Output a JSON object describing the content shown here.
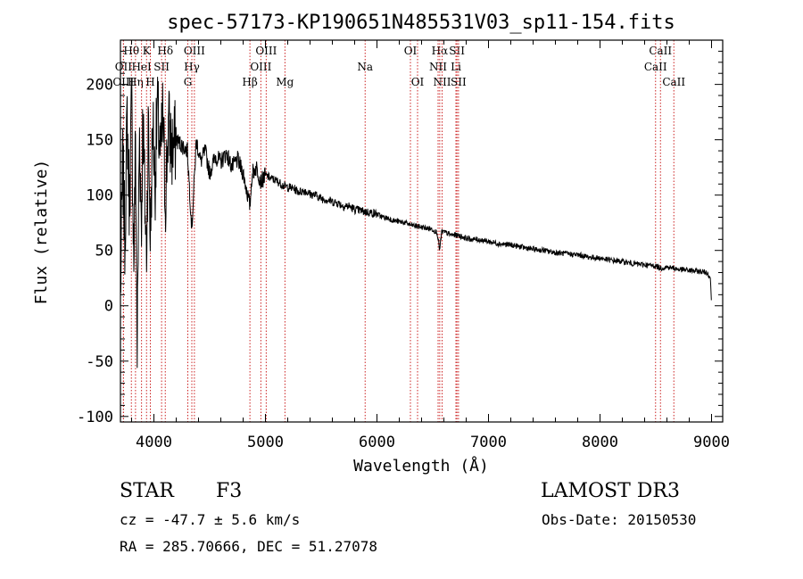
{
  "chart_data": {
    "type": "line",
    "title": "spec-57173-KP190651N485531V03_sp11-154.fits",
    "xlabel": "Wavelength (Å)",
    "ylabel": "Flux (relative)",
    "xlim": [
      3700,
      9100
    ],
    "ylim": [
      -105,
      240
    ],
    "x_ticks": [
      4000,
      5000,
      6000,
      7000,
      8000,
      9000
    ],
    "y_ticks": [
      -100,
      -50,
      0,
      50,
      100,
      150,
      200
    ],
    "series": [
      {
        "name": "spectrum",
        "x": [
          3700,
          3720,
          3740,
          3760,
          3780,
          3800,
          3820,
          3835,
          3850,
          3870,
          3889,
          3900,
          3920,
          3933,
          3950,
          3968,
          3990,
          4010,
          4030,
          4060,
          4080,
          4102,
          4130,
          4160,
          4200,
          4250,
          4300,
          4340,
          4380,
          4420,
          4460,
          4500,
          4550,
          4600,
          4650,
          4700,
          4750,
          4800,
          4861,
          4880,
          4920,
          4960,
          5000,
          5050,
          5100,
          5170,
          5250,
          5300,
          5350,
          5400,
          5450,
          5500,
          5550,
          5600,
          5650,
          5700,
          5750,
          5800,
          5850,
          5893,
          5950,
          6000,
          6050,
          6100,
          6150,
          6200,
          6250,
          6300,
          6350,
          6400,
          6450,
          6500,
          6540,
          6563,
          6580,
          6620,
          6660,
          6700,
          6750,
          6800,
          6850,
          6900,
          7000,
          7100,
          7200,
          7300,
          7400,
          7500,
          7600,
          7700,
          7800,
          7900,
          8000,
          8100,
          8200,
          8300,
          8400,
          8500,
          8542,
          8600,
          8662,
          8700,
          8800,
          8900,
          8960,
          8990,
          9000
        ],
        "y": [
          10,
          130,
          60,
          170,
          90,
          185,
          40,
          150,
          -40,
          160,
          70,
          175,
          90,
          45,
          165,
          60,
          170,
          110,
          180,
          130,
          175,
          95,
          165,
          140,
          150,
          145,
          140,
          70,
          150,
          130,
          140,
          120,
          135,
          130,
          138,
          125,
          132,
          120,
          90,
          120,
          125,
          112,
          118,
          115,
          113,
          108,
          106,
          103,
          104,
          101,
          100,
          97,
          96,
          94,
          93,
          90,
          90,
          87,
          86,
          85,
          84,
          83,
          80,
          79,
          77,
          76,
          75,
          73,
          72,
          71,
          70,
          69,
          66,
          50,
          67,
          66,
          64,
          64,
          63,
          61,
          60,
          60,
          58,
          56,
          55,
          53,
          51,
          50,
          48,
          47,
          46,
          44,
          43,
          41,
          40,
          38,
          37,
          36,
          34,
          35,
          34,
          33,
          32,
          31,
          30,
          25,
          0
        ]
      }
    ],
    "line_markers": [
      {
        "label": "Hθ",
        "wavelength": 3798,
        "row": 0
      },
      {
        "label": "OII",
        "wavelength": 3727,
        "row": 1
      },
      {
        "label": "OIII",
        "wavelength": 3727,
        "row": 2
      },
      {
        "label": "Hη",
        "wavelength": 3835,
        "row": 2
      },
      {
        "label": "HeI",
        "wavelength": 3889,
        "row": 1
      },
      {
        "label": "K",
        "wavelength": 3934,
        "row": 0
      },
      {
        "label": "H",
        "wavelength": 3968,
        "row": 2
      },
      {
        "label": "SII",
        "wavelength": 4069,
        "row": 1
      },
      {
        "label": "Hδ",
        "wavelength": 4102,
        "row": 0
      },
      {
        "label": "OIII",
        "wavelength": 4363,
        "row": 0
      },
      {
        "label": "Hγ",
        "wavelength": 4340,
        "row": 1
      },
      {
        "label": "G",
        "wavelength": 4304,
        "row": 2
      },
      {
        "label": "Hβ",
        "wavelength": 4861,
        "row": 2
      },
      {
        "label": "OIII",
        "wavelength": 4959,
        "row": 1
      },
      {
        "label": "OIII",
        "wavelength": 5007,
        "row": 0
      },
      {
        "label": "Mg",
        "wavelength": 5175,
        "row": 2
      },
      {
        "label": "Na",
        "wavelength": 5894,
        "row": 1
      },
      {
        "label": "OI",
        "wavelength": 6300,
        "row": 0
      },
      {
        "label": "OI",
        "wavelength": 6364,
        "row": 2
      },
      {
        "label": "Hα",
        "wavelength": 6563,
        "row": 0
      },
      {
        "label": "NII",
        "wavelength": 6548,
        "row": 1
      },
      {
        "label": "NII",
        "wavelength": 6584,
        "row": 2
      },
      {
        "label": "SII",
        "wavelength": 6717,
        "row": 0
      },
      {
        "label": "Li",
        "wavelength": 6708,
        "row": 1
      },
      {
        "label": "SII",
        "wavelength": 6731,
        "row": 2
      },
      {
        "label": "CaII",
        "wavelength": 8542,
        "row": 0
      },
      {
        "label": "CaII",
        "wavelength": 8498,
        "row": 1
      },
      {
        "label": "CaII",
        "wavelength": 8662,
        "row": 2
      }
    ]
  },
  "footer": {
    "object_class": "STAR",
    "subclass": "F3",
    "survey": "LAMOST DR3",
    "redshift": "cz = -47.7 ± 5.6 km/s",
    "obs_date": "Obs-Date: 20150530",
    "coords": "RA = 285.70666, DEC =  51.27078"
  }
}
